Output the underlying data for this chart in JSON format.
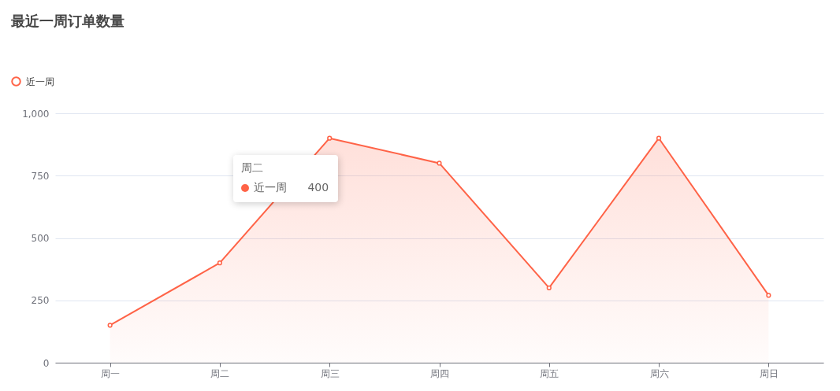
{
  "chart_data": {
    "type": "area",
    "title": "最近一周订单数量",
    "categories": [
      "周一",
      "周二",
      "周三",
      "周四",
      "周五",
      "周六",
      "周日"
    ],
    "series": [
      {
        "name": "近一周",
        "color": "#ff6347",
        "values": [
          150,
          400,
          900,
          800,
          300,
          900,
          270
        ]
      }
    ],
    "ylim": [
      0,
      1000
    ],
    "yticks": [
      0,
      250,
      500,
      750,
      {
        "value": 1000,
        "label": "1,000"
      }
    ],
    "grid": "y",
    "legend": "top left",
    "marker": "circle",
    "annotations": [
      "周二",
      "近一周 400"
    ]
  }
}
